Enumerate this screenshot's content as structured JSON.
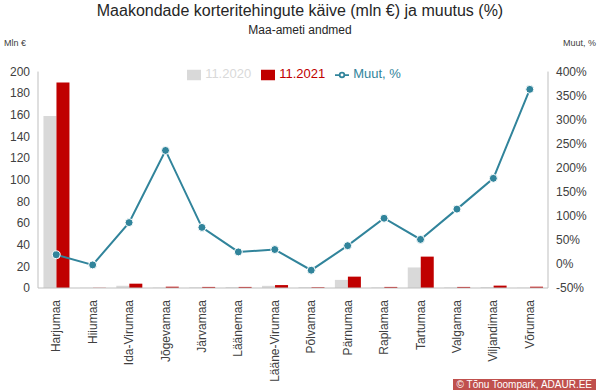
{
  "chart_data": {
    "type": "bar+line",
    "title": "Maakondade korteritehingute käive (mln €) ja muutus (%)",
    "subtitle": "Maa-ameti andmed",
    "y_label": "Mln €",
    "y2_label": "Muut, %",
    "source": "© Tõnu Toompark, ADAUR.EE",
    "categories": [
      "Harjumaa",
      "Hiiumaa",
      "Ida-Virumaa",
      "Jõgevamaa",
      "Järvamaa",
      "Läänemaa",
      "Lääne-Virumaa",
      "Põlvamaa",
      "Pärnumaa",
      "Raplamaa",
      "Tartumaa",
      "Valgamaa",
      "Viljandimaa",
      "Võrumaa"
    ],
    "series": [
      {
        "name": "11.2020",
        "type": "bar",
        "color": "#d9d9d9",
        "values": [
          159,
          0.2,
          2,
          0.4,
          0.6,
          0.8,
          2,
          0.8,
          7.5,
          0.5,
          19,
          0.5,
          0.8,
          0.3
        ]
      },
      {
        "name": "11.2021",
        "type": "bar",
        "color": "#c00000",
        "values": [
          190,
          0.2,
          4,
          1.2,
          1,
          1,
          2.7,
          0.7,
          10.5,
          1,
          29,
          1,
          2.2,
          1.2
        ]
      },
      {
        "name": "Muut, %",
        "type": "line",
        "axis": "y2",
        "color": "#31849b",
        "marker": "circle",
        "values": [
          19,
          -2,
          86,
          236,
          76,
          25,
          30,
          -13,
          38,
          95,
          51,
          114,
          178,
          363
        ]
      }
    ],
    "ylim": [
      0,
      200
    ],
    "yticks": [
      0,
      20,
      40,
      60,
      80,
      100,
      120,
      140,
      160,
      180,
      200
    ],
    "y2lim": [
      -50,
      400
    ],
    "y2ticks": [
      {
        "value": -50,
        "label": "-50%"
      },
      {
        "value": 0,
        "label": "0%"
      },
      {
        "value": 50,
        "label": "50%"
      },
      {
        "value": 100,
        "label": "100%"
      },
      {
        "value": 150,
        "label": "150%"
      },
      {
        "value": 200,
        "label": "200%"
      },
      {
        "value": 250,
        "label": "250%"
      },
      {
        "value": 300,
        "label": "300%"
      },
      {
        "value": 350,
        "label": "350%"
      },
      {
        "value": 400,
        "label": "400%"
      }
    ],
    "grid": false,
    "legend": "top"
  }
}
